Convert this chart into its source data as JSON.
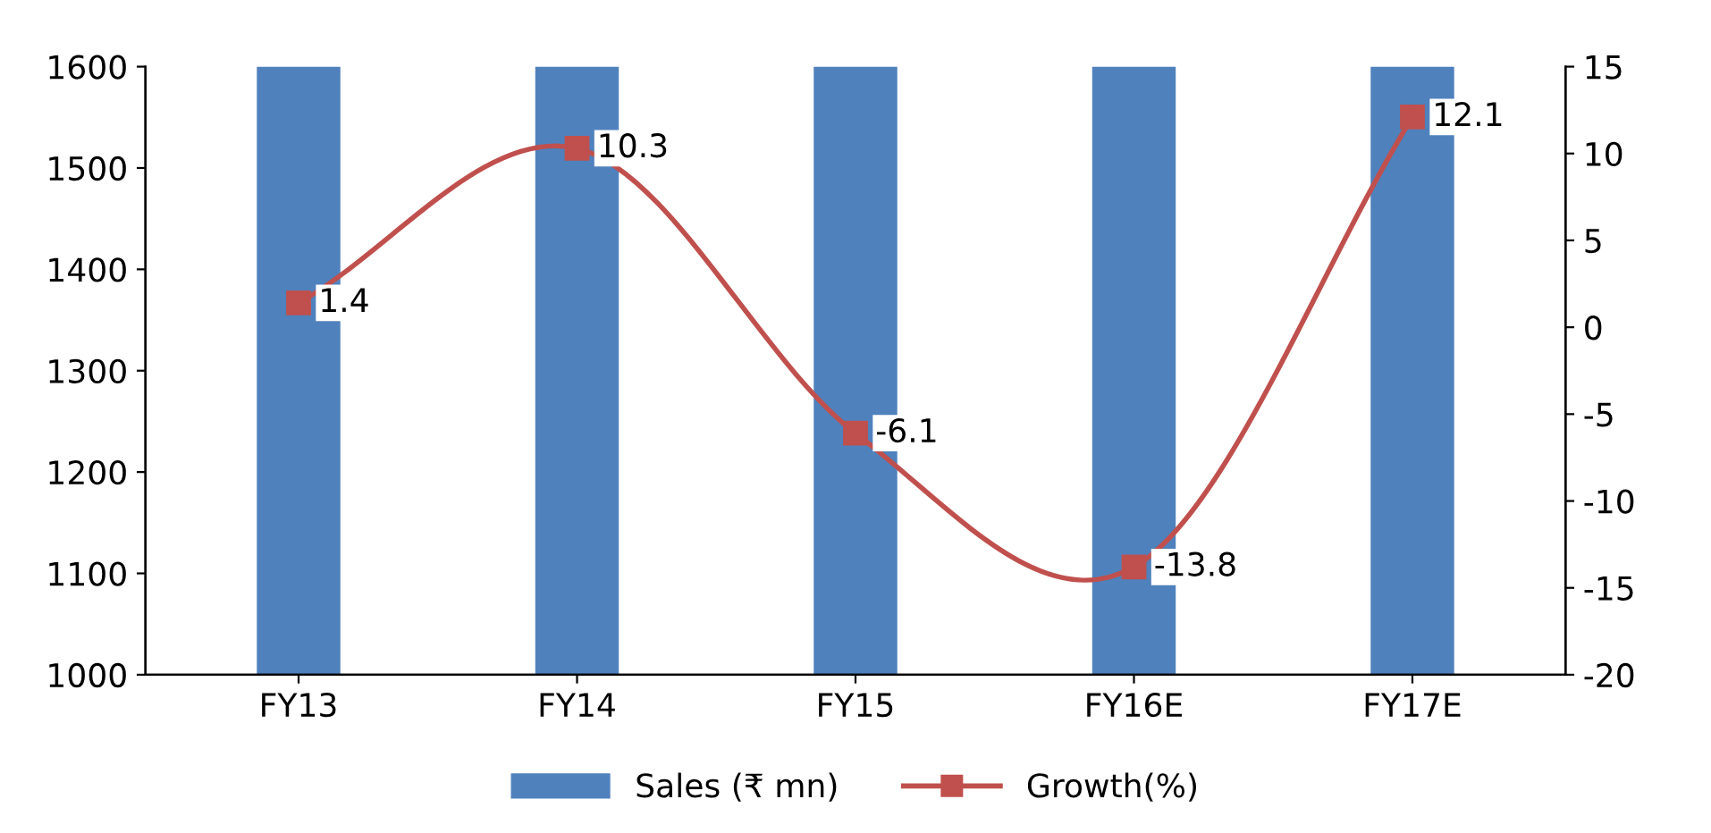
{
  "chart_data": {
    "type": "bar",
    "categories": [
      "FY13",
      "FY14",
      "FY15",
      "FY16E",
      "FY17E"
    ],
    "series": [
      {
        "name": "Sales (₹ mn)",
        "color": "#4f81bd",
        "values": [
          1600,
          1600,
          1600,
          1600,
          1600
        ]
      },
      {
        "name": "Growth(%)",
        "type": "line",
        "axis": "y2",
        "color": "#c0504d",
        "values": [
          1.4,
          10.3,
          -6.1,
          -13.8,
          12.1
        ],
        "value_labels": [
          "1.4",
          "10.3",
          "-6.1",
          "-13.8",
          "12.1"
        ]
      }
    ],
    "ylim": [
      1000,
      1600
    ],
    "yticks": [
      1000,
      1100,
      1200,
      1300,
      1400,
      1500,
      1600
    ],
    "y2lim": [
      -20,
      15
    ],
    "y2ticks": [
      -20,
      -15,
      -10,
      -5,
      0,
      5,
      10,
      15
    ],
    "marker": "square",
    "line_style": "solid",
    "grid": false,
    "legend": "bottom"
  }
}
